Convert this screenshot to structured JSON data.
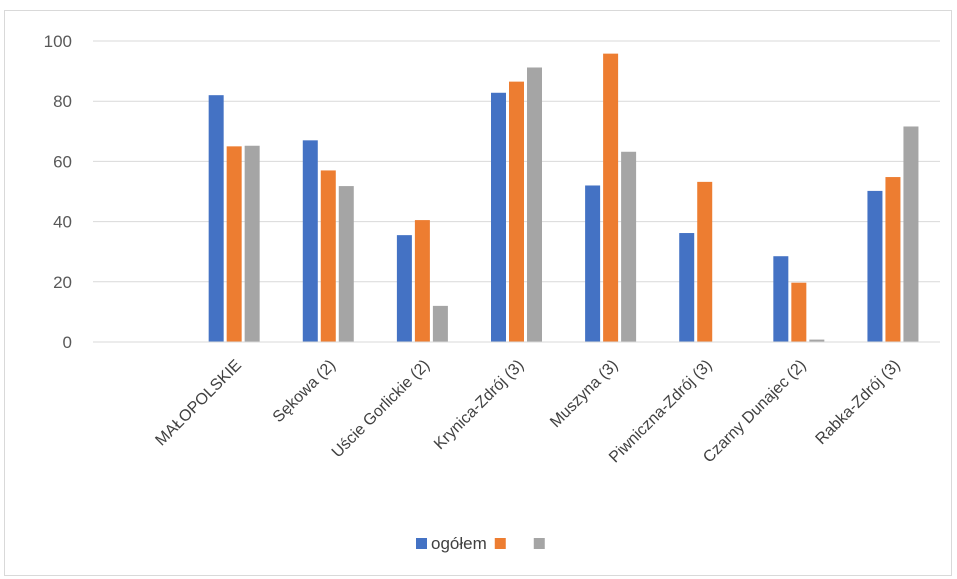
{
  "chart_data": {
    "type": "bar",
    "title": "",
    "xlabel": "",
    "ylabel": "",
    "ylim": [
      0,
      100
    ],
    "yticks": [
      0,
      20,
      40,
      60,
      80,
      100
    ],
    "grid": true,
    "legend_position": "bottom",
    "categories": [
      "",
      "MAŁOPOLSKIE",
      "Sękowa (2)",
      "Uście Gorlickie (2)",
      "Krynica-Zdrój (3)",
      "Muszyna (3)",
      "Piwniczna-Zdrój (3)",
      "Czarny Dunajec (2)",
      "Rabka-Zdrój (3)"
    ],
    "series": [
      {
        "name": "ogółem",
        "color": "#4472C4",
        "values": [
          null,
          82,
          67,
          35.5,
          82.8,
          52,
          36.2,
          28.5,
          50.2
        ]
      },
      {
        "name": "",
        "color": "#ED7D31",
        "values": [
          null,
          65,
          57,
          40.5,
          86.5,
          95.8,
          53.2,
          19.7,
          54.8
        ]
      },
      {
        "name": "",
        "color": "#A5A5A5",
        "values": [
          null,
          65.2,
          51.8,
          12,
          91.2,
          63.2,
          0,
          0.8,
          71.6
        ]
      }
    ]
  }
}
